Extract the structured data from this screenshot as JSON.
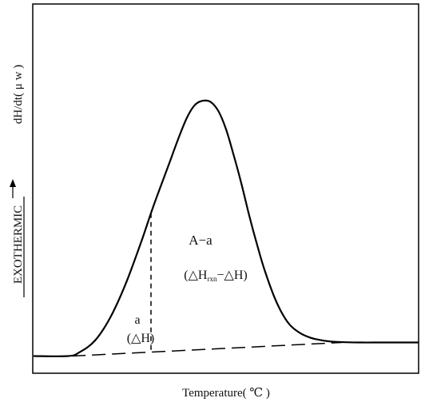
{
  "chart_data": {
    "type": "line",
    "xlabel": "Temperature( ℃ )",
    "ylabel": "dH/dt( μ w )",
    "ylabel_secondary": "EXOTHERMIC",
    "direction_arrow": "up",
    "grid": false,
    "x_ticks": [],
    "y_ticks": [],
    "annotations": {
      "peak_label": "A−a",
      "peak_formula": {
        "open": "(△H",
        "subscript": "rxn",
        "rest": "−△H)"
      },
      "partial_label": "a",
      "partial_formula": "(△H)"
    },
    "curve": {
      "x": [
        0.0,
        0.09,
        0.12,
        0.16,
        0.2,
        0.24,
        0.28,
        0.31,
        0.35,
        0.38,
        0.4,
        0.42,
        0.44,
        0.46,
        0.48,
        0.5,
        0.52,
        0.54,
        0.56,
        0.58,
        0.6,
        0.63,
        0.66,
        0.69,
        0.72,
        0.75,
        0.78,
        0.81,
        0.85,
        0.9,
        0.95,
        1.0
      ],
      "y": [
        0.02,
        0.02,
        0.035,
        0.08,
        0.17,
        0.3,
        0.46,
        0.59,
        0.75,
        0.87,
        0.94,
        0.985,
        1.0,
        0.995,
        0.96,
        0.89,
        0.79,
        0.68,
        0.56,
        0.45,
        0.35,
        0.23,
        0.15,
        0.11,
        0.09,
        0.08,
        0.075,
        0.073,
        0.072,
        0.072,
        0.072,
        0.072
      ]
    },
    "baseline": {
      "style": "dashed",
      "x": [
        0.1,
        0.8
      ],
      "y": [
        0.02,
        0.072
      ]
    },
    "partial_area_cut": {
      "style": "dashed",
      "x": 0.305
    }
  }
}
